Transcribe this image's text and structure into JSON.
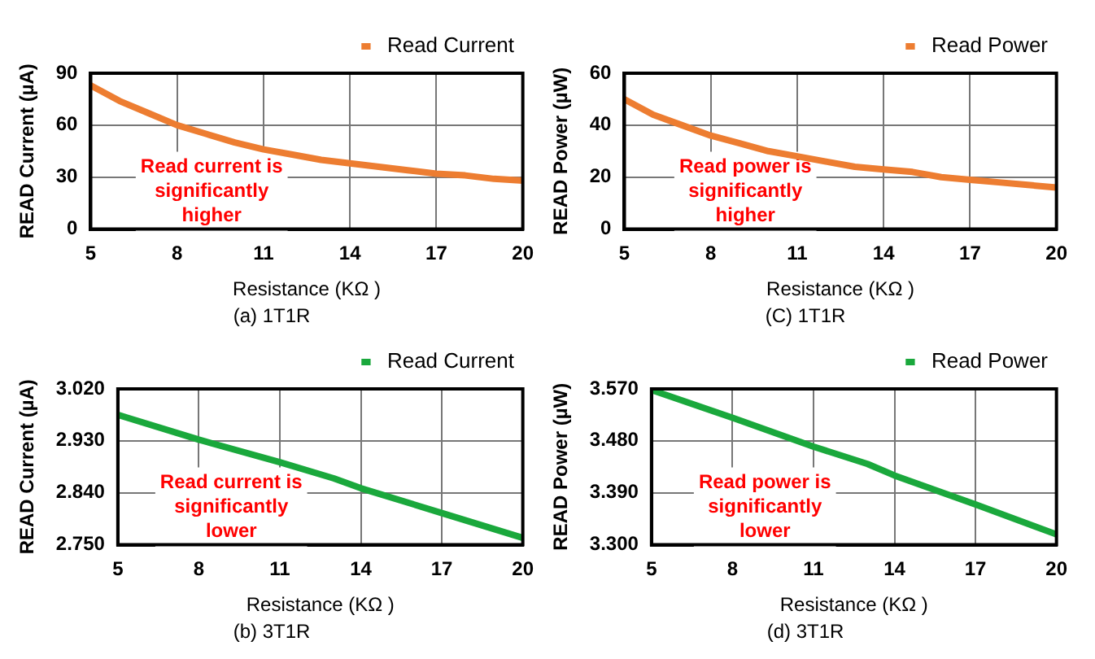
{
  "chart_data": [
    {
      "type": "line",
      "title": "(a) 1T1R",
      "xlabel": "Resistance (KΩ )",
      "ylabel": "READ Current (µA)",
      "x": [
        5,
        6,
        7,
        8,
        9,
        10,
        11,
        12,
        13,
        14,
        15,
        16,
        17,
        18,
        19,
        20
      ],
      "xlim": [
        5,
        20
      ],
      "xticks": [
        5,
        8,
        11,
        14,
        17,
        20
      ],
      "ylim": [
        0,
        90
      ],
      "yticks": [
        0,
        30,
        60,
        90
      ],
      "grid": true,
      "legend": "top right",
      "marker": "none",
      "annotations": [
        "Read current is significantly higher"
      ],
      "series": [
        {
          "name": "Read Current",
          "color": "#ed7d31",
          "values": [
            83,
            74,
            67,
            60,
            55,
            50,
            46,
            43,
            40,
            38,
            36,
            34,
            32,
            31,
            29,
            28
          ]
        }
      ]
    },
    {
      "type": "line",
      "title": "(C) 1T1R",
      "xlabel": "Resistance (KΩ )",
      "ylabel": "READ Power (µW)",
      "x": [
        5,
        6,
        7,
        8,
        9,
        10,
        11,
        12,
        13,
        14,
        15,
        16,
        17,
        18,
        19,
        20
      ],
      "xlim": [
        5,
        20
      ],
      "xticks": [
        5,
        8,
        11,
        14,
        17,
        20
      ],
      "ylim": [
        0,
        60
      ],
      "yticks": [
        0,
        20,
        40,
        60
      ],
      "grid": true,
      "legend": "top right",
      "marker": "none",
      "annotations": [
        "Read power is significantly higher"
      ],
      "series": [
        {
          "name": "Read Power",
          "color": "#ed7d31",
          "values": [
            50,
            44,
            40,
            36,
            33,
            30,
            28,
            26,
            24,
            23,
            22,
            20,
            19,
            18,
            17,
            16
          ]
        }
      ]
    },
    {
      "type": "line",
      "title": "(b) 3T1R",
      "xlabel": "Resistance (KΩ )",
      "ylabel": "READ Current (µA)",
      "x": [
        5,
        8,
        11,
        13,
        14,
        17,
        20
      ],
      "xlim": [
        5,
        20
      ],
      "xticks": [
        5,
        8,
        11,
        14,
        17,
        20
      ],
      "ylim": [
        2.75,
        3.02
      ],
      "yticks": [
        {
          "value": 2.75,
          "label": "2.750"
        },
        {
          "value": 2.84,
          "label": "2.840"
        },
        {
          "value": 2.93,
          "label": "2.930"
        },
        {
          "value": 3.02,
          "label": "3.020"
        }
      ],
      "grid": true,
      "legend": "top right",
      "marker": "none",
      "annotations": [
        "Read current is significantly lower"
      ],
      "series": [
        {
          "name": "Read Current",
          "color": "#1aa83c",
          "values": [
            2.975,
            2.932,
            2.893,
            2.865,
            2.848,
            2.805,
            2.762
          ]
        }
      ]
    },
    {
      "type": "line",
      "title": "(d) 3T1R",
      "xlabel": "Resistance (KΩ )",
      "ylabel": "READ Power (µW)",
      "x": [
        5,
        8,
        11,
        13,
        14,
        17,
        20
      ],
      "xlim": [
        5,
        20
      ],
      "xticks": [
        5,
        8,
        11,
        14,
        17,
        20
      ],
      "ylim": [
        3.3,
        3.57
      ],
      "yticks": [
        {
          "value": 3.3,
          "label": "3.300"
        },
        {
          "value": 3.39,
          "label": "3.390"
        },
        {
          "value": 3.48,
          "label": "3.480"
        },
        {
          "value": 3.57,
          "label": "3.570"
        }
      ],
      "grid": true,
      "legend": "top right",
      "marker": "none",
      "annotations": [
        "Read power is significantly lower"
      ],
      "series": [
        {
          "name": "Read Power",
          "color": "#1aa83c",
          "values": [
            3.568,
            3.52,
            3.47,
            3.44,
            3.42,
            3.37,
            3.318
          ]
        }
      ]
    }
  ]
}
